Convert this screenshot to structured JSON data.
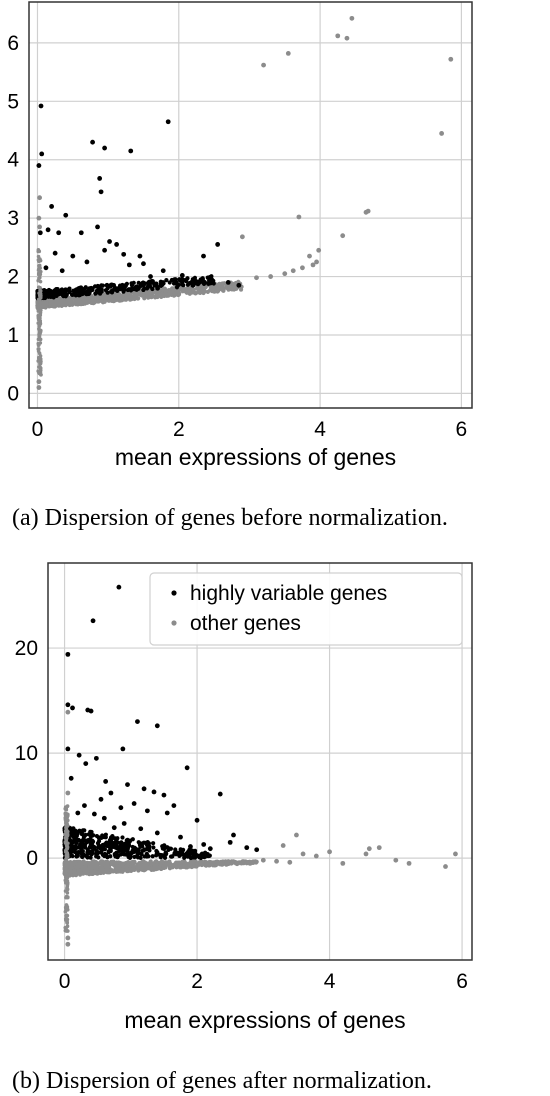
{
  "chart_data": [
    {
      "type": "scatter",
      "xlabel": "mean expressions of genes",
      "ylabel": "",
      "xlim": [
        -0.12,
        6.15
      ],
      "ylim": [
        -0.25,
        6.7
      ],
      "xticks": [
        0,
        2,
        4,
        6
      ],
      "yticks": [
        0,
        1,
        2,
        3,
        4,
        5,
        6
      ],
      "grid": true,
      "legend": null,
      "caption": "(a) Dispersion of genes before normalization.",
      "series": [
        {
          "color": "#000000",
          "points": [
            [
              0.05,
              4.92
            ],
            [
              0.06,
              4.1
            ],
            [
              0.02,
              3.9
            ],
            [
              0.78,
              4.3
            ],
            [
              0.95,
              4.2
            ],
            [
              1.32,
              4.15
            ],
            [
              1.85,
              4.65
            ],
            [
              0.88,
              3.68
            ],
            [
              0.9,
              3.45
            ],
            [
              0.4,
              3.05
            ],
            [
              0.2,
              3.2
            ],
            [
              0.04,
              2.75
            ],
            [
              0.15,
              2.8
            ],
            [
              0.3,
              2.75
            ],
            [
              0.62,
              2.75
            ],
            [
              0.85,
              2.85
            ],
            [
              1.02,
              2.6
            ],
            [
              1.12,
              2.55
            ],
            [
              0.95,
              2.45
            ],
            [
              1.22,
              2.38
            ],
            [
              1.45,
              2.35
            ],
            [
              1.5,
              2.22
            ],
            [
              1.78,
              2.1
            ],
            [
              2.05,
              2.02
            ],
            [
              2.35,
              2.35
            ],
            [
              2.55,
              2.55
            ],
            [
              0.5,
              2.35
            ],
            [
              0.7,
              2.25
            ],
            [
              1.3,
              2.2
            ],
            [
              0.25,
              2.4
            ],
            [
              0.12,
              2.15
            ],
            [
              0.35,
              2.1
            ],
            [
              1.6,
              2.0
            ],
            [
              1.95,
              1.95
            ],
            [
              2.18,
              1.9
            ],
            [
              2.42,
              1.88
            ],
            [
              2.7,
              1.9
            ],
            [
              2.85,
              1.85
            ],
            [
              2.2,
              1.85
            ],
            [
              1.7,
              1.8
            ]
          ]
        },
        {
          "color": "#8c8c8c",
          "points": [
            [
              0.03,
              3.35
            ],
            [
              0.02,
              3.0
            ],
            [
              0.03,
              2.85
            ],
            [
              2.9,
              2.68
            ],
            [
              3.2,
              5.62
            ],
            [
              3.55,
              5.82
            ],
            [
              4.25,
              6.12
            ],
            [
              4.38,
              6.08
            ],
            [
              4.45,
              6.42
            ],
            [
              5.72,
              4.45
            ],
            [
              5.85,
              5.72
            ],
            [
              4.65,
              3.1
            ],
            [
              4.68,
              3.12
            ],
            [
              4.32,
              2.7
            ],
            [
              3.7,
              3.02
            ],
            [
              3.85,
              2.35
            ],
            [
              3.98,
              2.45
            ],
            [
              3.95,
              2.25
            ],
            [
              3.9,
              2.2
            ],
            [
              3.75,
              2.15
            ],
            [
              3.62,
              2.1
            ],
            [
              3.5,
              2.05
            ],
            [
              3.3,
              2.0
            ],
            [
              3.1,
              1.98
            ],
            [
              0.03,
              0.35
            ],
            [
              0.02,
              0.2
            ],
            [
              0.02,
              0.1
            ]
          ]
        }
      ]
    },
    {
      "type": "scatter",
      "xlabel": "mean expressions of genes",
      "ylabel": "",
      "xlim": [
        -0.25,
        6.15
      ],
      "ylim": [
        -9.7,
        28.1
      ],
      "xticks": [
        0,
        2,
        4,
        6
      ],
      "yticks": [
        0,
        10,
        20
      ],
      "grid": true,
      "legend": "top-right",
      "caption": "(b) Dispersion of genes after normalization.",
      "series": [
        {
          "name": "highly variable genes",
          "color": "#000000",
          "points": [
            [
              0.82,
              25.8
            ],
            [
              0.43,
              22.6
            ],
            [
              0.05,
              19.4
            ],
            [
              0.05,
              14.6
            ],
            [
              0.12,
              14.3
            ],
            [
              0.35,
              14.1
            ],
            [
              0.4,
              14.0
            ],
            [
              1.1,
              13.0
            ],
            [
              1.4,
              12.6
            ],
            [
              0.05,
              10.4
            ],
            [
              0.88,
              10.4
            ],
            [
              0.22,
              9.8
            ],
            [
              0.48,
              9.5
            ],
            [
              0.32,
              9.0
            ],
            [
              1.85,
              8.6
            ],
            [
              0.1,
              7.6
            ],
            [
              0.62,
              7.3
            ],
            [
              0.95,
              7.0
            ],
            [
              1.2,
              6.6
            ],
            [
              1.35,
              6.3
            ],
            [
              1.5,
              6.0
            ],
            [
              2.35,
              6.1
            ],
            [
              0.7,
              6.2
            ],
            [
              0.55,
              5.6
            ],
            [
              1.05,
              5.2
            ],
            [
              1.65,
              5.0
            ],
            [
              0.85,
              4.8
            ],
            [
              1.25,
              4.5
            ],
            [
              1.55,
              4.3
            ],
            [
              2.0,
              3.6
            ],
            [
              2.55,
              2.2
            ],
            [
              2.5,
              1.5
            ],
            [
              2.9,
              0.8
            ],
            [
              2.75,
              1.0
            ],
            [
              2.2,
              0.9
            ],
            [
              1.9,
              1.1
            ],
            [
              2.1,
              1.3
            ],
            [
              1.75,
              2.0
            ],
            [
              1.4,
              2.4
            ],
            [
              1.15,
              2.8
            ],
            [
              0.9,
              3.3
            ],
            [
              0.75,
              2.9
            ],
            [
              0.6,
              3.8
            ],
            [
              0.45,
              4.2
            ],
            [
              0.3,
              5.0
            ],
            [
              0.2,
              4.3
            ]
          ]
        },
        {
          "name": "other genes",
          "color": "#8c8c8c",
          "points": [
            [
              0.05,
              13.9
            ],
            [
              0.05,
              6.2
            ],
            [
              3.5,
              2.2
            ],
            [
              3.3,
              1.2
            ],
            [
              4.0,
              0.6
            ],
            [
              4.6,
              0.9
            ],
            [
              4.75,
              1.0
            ],
            [
              4.55,
              0.4
            ],
            [
              5.0,
              -0.2
            ],
            [
              5.2,
              -0.5
            ],
            [
              5.9,
              0.4
            ],
            [
              5.75,
              -0.8
            ],
            [
              4.2,
              -0.5
            ],
            [
              3.8,
              0.2
            ],
            [
              3.6,
              0.4
            ],
            [
              3.4,
              -0.4
            ],
            [
              3.2,
              -0.3
            ],
            [
              3.0,
              -0.2
            ],
            [
              2.8,
              -0.5
            ],
            [
              0.05,
              -7.6
            ],
            [
              0.05,
              -8.2
            ]
          ]
        }
      ]
    }
  ]
}
